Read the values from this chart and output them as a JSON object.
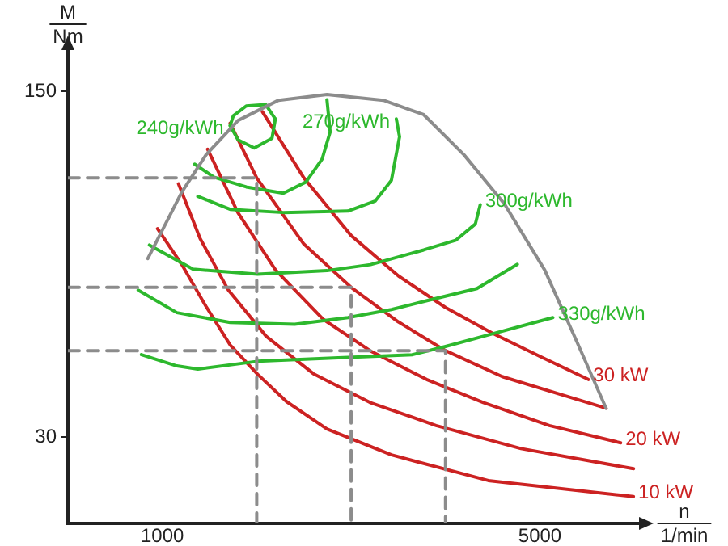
{
  "chart_data": {
    "type": "line",
    "xlabel": "n\n1/min",
    "ylabel": "M\nNm",
    "xlim": [
      0,
      6050
    ],
    "ylim": [
      0,
      165
    ],
    "xticks": [
      1000,
      5000
    ],
    "yticks": [
      30,
      150
    ],
    "series": [
      {
        "color": "#8c8c8c",
        "x": [
          846,
          1205,
          1462,
          1803,
          2231,
          2744,
          3342,
          3769,
          4197,
          4624,
          5051,
          5393,
          5701
        ],
        "values": [
          92,
          115,
          128,
          140,
          147,
          149,
          147,
          142,
          128,
          111,
          88,
          63,
          40
        ]
      },
      {
        "color": "#8c8c8c",
        "line_style": "dashed",
        "x": [
          0,
          2000,
          2000
        ],
        "values": [
          120,
          120,
          0
        ]
      },
      {
        "color": "#8c8c8c",
        "line_style": "dashed",
        "x": [
          0,
          3000,
          3000
        ],
        "values": [
          82,
          82,
          0
        ]
      },
      {
        "color": "#8c8c8c",
        "line_style": "dashed",
        "x": [
          0,
          4000,
          4000
        ],
        "values": [
          60,
          60,
          0
        ]
      },
      {
        "color": "#2db82d",
        "x": [
          1718,
          1752,
          1889,
          2094,
          2197
        ],
        "values": [
          138.2,
          141.6,
          145,
          145.5,
          140.5
        ]
      },
      {
        "color": "#2db82d",
        "x": [
          1718,
          1803,
          1974,
          2162,
          2197
        ],
        "values": [
          138.2,
          133.2,
          130.4,
          133.8,
          140.5
        ]
      },
      {
        "color": "#2db82d",
        "x": [
          1342,
          1547,
          1889,
          2282,
          2521,
          2692,
          2778,
          2744
        ],
        "values": [
          124.8,
          120.3,
          116.9,
          114.7,
          118.6,
          126.5,
          136,
          147.2
        ]
      },
      {
        "color": "#2db82d",
        "x": [
          1376,
          1718,
          2282,
          2966,
          3256,
          3427,
          3513,
          3479
        ],
        "values": [
          113.6,
          109.1,
          108,
          108.5,
          112,
          119.2,
          134.3,
          140.5
        ]
      },
      {
        "color": "#2db82d",
        "x": [
          863,
          1325,
          2009,
          2744,
          3205,
          3769,
          4111,
          4316,
          4368
        ],
        "values": [
          96.7,
          88.3,
          86.6,
          87.8,
          89.9,
          95,
          98.4,
          104,
          110.7
        ]
      },
      {
        "color": "#2db82d",
        "x": [
          744,
          1154,
          1718,
          2402,
          2966,
          3427,
          3769,
          4333,
          4761
        ],
        "values": [
          81,
          73.2,
          69.8,
          69.2,
          71.5,
          74.3,
          77.1,
          81.6,
          90
        ]
      },
      {
        "color": "#2db82d",
        "x": [
          778,
          1154,
          1376,
          2009,
          2863,
          3650,
          3992,
          4504,
          5137
        ],
        "values": [
          58.6,
          54.7,
          53.6,
          56.3,
          57.5,
          58.6,
          61.4,
          65.9,
          71.5
        ]
      },
      {
        "color": "#cc2222",
        "x": [
          2060,
          2500,
          3000,
          3500,
          4000,
          4500,
          5000,
          5513
        ],
        "values": [
          143,
          120,
          100,
          86,
          75,
          66,
          58,
          50
        ]
      },
      {
        "color": "#cc2222",
        "x": [
          1718,
          2000,
          2500,
          3000,
          3500,
          4000,
          4600,
          5200,
          5701
        ],
        "values": [
          139,
          120,
          97,
          82,
          70,
          60,
          51,
          45,
          40
        ]
      },
      {
        "color": "#cc2222",
        "x": [
          1479,
          1800,
          2200,
          2700,
          3200,
          3800,
          4400,
          5100,
          5855
        ],
        "values": [
          130,
          108,
          88,
          71,
          60,
          50,
          42,
          34,
          28
        ]
      },
      {
        "color": "#cc2222",
        "x": [
          1171,
          1400,
          1700,
          2100,
          2600,
          3200,
          3900,
          4800,
          5991
        ],
        "values": [
          118,
          99,
          81,
          65,
          52,
          42,
          34,
          26,
          19
        ]
      },
      {
        "color": "#cc2222",
        "x": [
          949,
          1205,
          1462,
          1718,
          2009,
          2316,
          2744,
          3427,
          4453,
          5991
        ],
        "values": [
          102.4,
          90,
          75.4,
          62,
          51.8,
          42.3,
          32.8,
          23.8,
          14.9,
          9.3
        ]
      }
    ],
    "annotations": [
      {
        "text": "240g/kWh",
        "x": 1718,
        "y": 138.2
      },
      {
        "text": "270g/kWh",
        "x": 3479,
        "y": 140.5
      },
      {
        "text": "300g/kWh",
        "x": 4368,
        "y": 110.7
      },
      {
        "text": "330g/kWh",
        "x": 5137,
        "y": 71.5
      },
      {
        "text": "30 kW",
        "x": 5513,
        "y": 50
      },
      {
        "text": "20 kW",
        "x": 5855,
        "y": 28
      },
      {
        "text": "10 kW",
        "x": 5991,
        "y": 9.3
      }
    ]
  }
}
